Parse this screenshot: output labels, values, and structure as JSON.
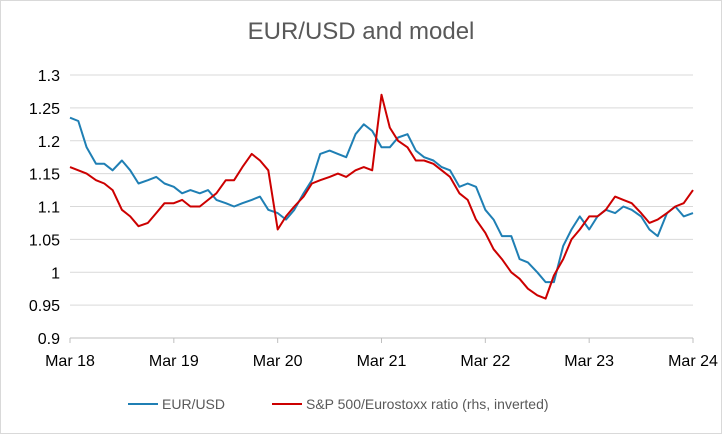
{
  "chart_data": {
    "type": "line",
    "title": "EUR/USD and model",
    "xlabel": "",
    "ylabel": "",
    "x_tick_labels": [
      "Mar 18",
      "Mar 19",
      "Mar 20",
      "Mar 21",
      "Mar 22",
      "Mar 23",
      "Mar 24"
    ],
    "x_range": [
      2018.17,
      2024.17
    ],
    "y_tick_labels": [
      "0.9",
      "0.95",
      "1",
      "1.05",
      "1.1",
      "1.15",
      "1.2",
      "1.25",
      "1.3"
    ],
    "ylim": [
      0.9,
      1.3
    ],
    "grid": "horizontal",
    "legend_position": "bottom",
    "series": [
      {
        "name": "EUR/USD",
        "color": "#1f7fb4",
        "x": [
          2018.17,
          2018.25,
          2018.33,
          2018.42,
          2018.5,
          2018.58,
          2018.67,
          2018.75,
          2018.83,
          2018.92,
          2019.0,
          2019.08,
          2019.17,
          2019.25,
          2019.33,
          2019.42,
          2019.5,
          2019.58,
          2019.67,
          2019.75,
          2019.83,
          2019.92,
          2020.0,
          2020.08,
          2020.17,
          2020.25,
          2020.33,
          2020.42,
          2020.5,
          2020.58,
          2020.67,
          2020.75,
          2020.83,
          2020.92,
          2021.0,
          2021.08,
          2021.17,
          2021.25,
          2021.33,
          2021.42,
          2021.5,
          2021.58,
          2021.67,
          2021.75,
          2021.83,
          2021.92,
          2022.0,
          2022.08,
          2022.17,
          2022.25,
          2022.33,
          2022.42,
          2022.5,
          2022.58,
          2022.67,
          2022.75,
          2022.83,
          2022.92,
          2023.0,
          2023.08,
          2023.17,
          2023.25,
          2023.33,
          2023.42,
          2023.5,
          2023.58,
          2023.67,
          2023.75,
          2023.83,
          2023.92,
          2024.0,
          2024.08,
          2024.17
        ],
        "values": [
          1.235,
          1.23,
          1.19,
          1.165,
          1.165,
          1.155,
          1.17,
          1.155,
          1.135,
          1.14,
          1.145,
          1.135,
          1.13,
          1.12,
          1.125,
          1.12,
          1.125,
          1.11,
          1.105,
          1.1,
          1.105,
          1.11,
          1.115,
          1.095,
          1.09,
          1.08,
          1.095,
          1.12,
          1.14,
          1.18,
          1.185,
          1.18,
          1.175,
          1.21,
          1.225,
          1.215,
          1.19,
          1.19,
          1.205,
          1.21,
          1.185,
          1.175,
          1.17,
          1.16,
          1.155,
          1.13,
          1.135,
          1.13,
          1.095,
          1.08,
          1.055,
          1.055,
          1.02,
          1.015,
          1.0,
          0.985,
          0.985,
          1.04,
          1.065,
          1.085,
          1.065,
          1.085,
          1.095,
          1.09,
          1.1,
          1.095,
          1.085,
          1.065,
          1.055,
          1.09,
          1.1,
          1.085,
          1.09
        ]
      },
      {
        "name": "S&P 500/Eurostoxx ratio (rhs, inverted)",
        "color": "#cc0000",
        "x": [
          2018.17,
          2018.25,
          2018.33,
          2018.42,
          2018.5,
          2018.58,
          2018.67,
          2018.75,
          2018.83,
          2018.92,
          2019.0,
          2019.08,
          2019.17,
          2019.25,
          2019.33,
          2019.42,
          2019.5,
          2019.58,
          2019.67,
          2019.75,
          2019.83,
          2019.92,
          2020.0,
          2020.08,
          2020.17,
          2020.25,
          2020.33,
          2020.42,
          2020.5,
          2020.58,
          2020.67,
          2020.75,
          2020.83,
          2020.92,
          2021.0,
          2021.08,
          2021.17,
          2021.25,
          2021.33,
          2021.42,
          2021.5,
          2021.58,
          2021.67,
          2021.75,
          2021.83,
          2021.92,
          2022.0,
          2022.08,
          2022.17,
          2022.25,
          2022.33,
          2022.42,
          2022.5,
          2022.58,
          2022.67,
          2022.75,
          2022.83,
          2022.92,
          2023.0,
          2023.08,
          2023.17,
          2023.25,
          2023.33,
          2023.42,
          2023.5,
          2023.58,
          2023.67,
          2023.75,
          2023.83,
          2023.92,
          2024.0,
          2024.08,
          2024.17
        ],
        "values": [
          1.16,
          1.155,
          1.15,
          1.14,
          1.135,
          1.125,
          1.095,
          1.085,
          1.07,
          1.075,
          1.09,
          1.105,
          1.105,
          1.11,
          1.1,
          1.1,
          1.11,
          1.12,
          1.14,
          1.14,
          1.16,
          1.18,
          1.17,
          1.155,
          1.065,
          1.085,
          1.1,
          1.115,
          1.135,
          1.14,
          1.145,
          1.15,
          1.145,
          1.155,
          1.16,
          1.155,
          1.27,
          1.22,
          1.2,
          1.19,
          1.17,
          1.17,
          1.165,
          1.155,
          1.145,
          1.12,
          1.11,
          1.08,
          1.06,
          1.035,
          1.02,
          1.0,
          0.99,
          0.975,
          0.965,
          0.96,
          0.995,
          1.02,
          1.05,
          1.065,
          1.085,
          1.085,
          1.095,
          1.115,
          1.11,
          1.105,
          1.09,
          1.075,
          1.08,
          1.09,
          1.1,
          1.105,
          1.125
        ]
      }
    ]
  }
}
